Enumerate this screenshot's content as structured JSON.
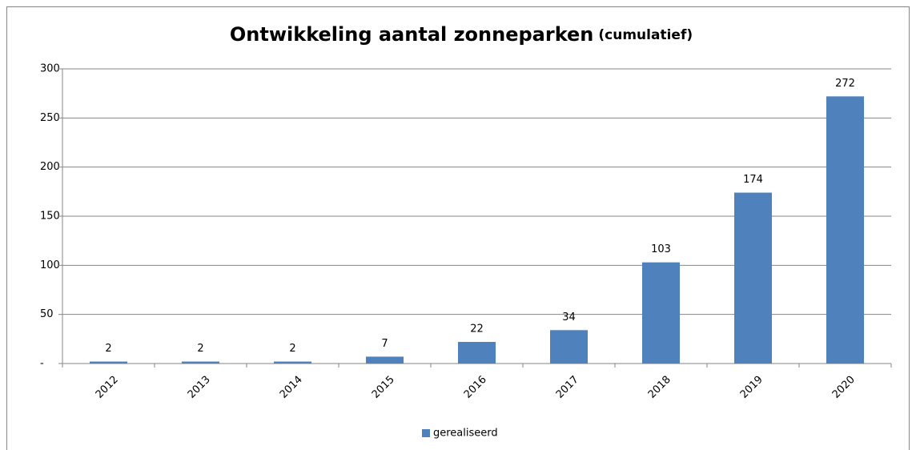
{
  "chart_data": {
    "type": "bar",
    "title": "Ontwikkeling aantal zonneparken",
    "subtitle": "(cumulatief)",
    "categories": [
      "2012",
      "2013",
      "2014",
      "2015",
      "2016",
      "2017",
      "2018",
      "2019",
      "2020"
    ],
    "series": [
      {
        "name": "gerealiseerd",
        "color": "#4f81bd",
        "values": [
          2,
          2,
          2,
          7,
          22,
          34,
          103,
          174,
          272
        ]
      }
    ],
    "ylim": [
      0,
      300
    ],
    "yticks": [
      {
        "value": 0,
        "label": "-"
      },
      50,
      100,
      150,
      200,
      250,
      300
    ],
    "grid": true,
    "legend": "bottom"
  }
}
